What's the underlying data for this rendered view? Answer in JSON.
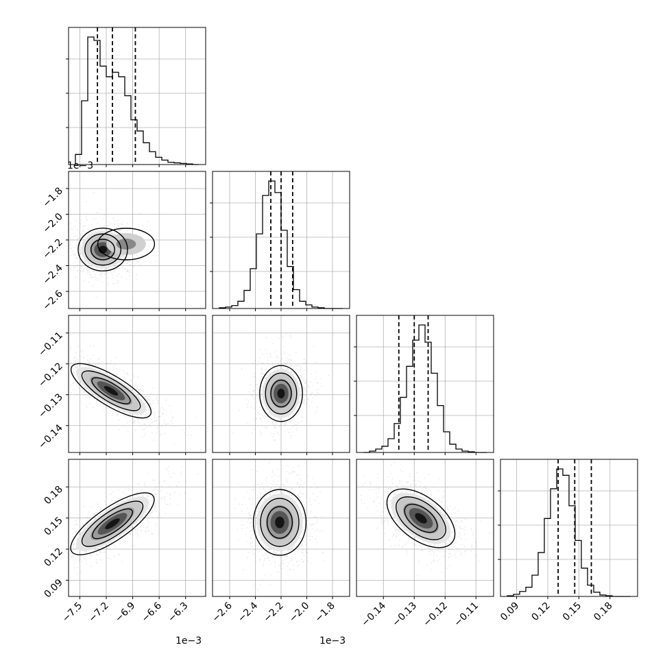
{
  "chart_data": {
    "type": "corner",
    "n_params": 4,
    "grid": true,
    "colors": {
      "line": "#000000",
      "grid": "#b0b0b0",
      "points": "#9a9a9a",
      "density_dark": "#000000",
      "background": "#ffffff"
    },
    "offset_text": {
      "p0": "1e−3",
      "p1": "1e−3"
    },
    "params": [
      {
        "range": [
          -7.55,
          -6.15
        ],
        "ticks": [
          -7.5,
          -7.2,
          -6.9,
          -6.6,
          -6.3
        ],
        "tick_labels": [
          "−7.5",
          "−7.2",
          "−6.9",
          "−6.6",
          "−6.3"
        ],
        "quantiles": [
          -7.3,
          -7.13,
          -6.87
        ]
      },
      {
        "range": [
          -2.68,
          -1.72
        ],
        "ticks": [
          -2.6,
          -2.4,
          -2.2,
          -2.0,
          -1.8
        ],
        "tick_labels": [
          "−2.6",
          "−2.4",
          "−2.2",
          "−2.0",
          "−1.8"
        ],
        "quantiles": [
          -2.28,
          -2.2,
          -2.11
        ]
      },
      {
        "range": [
          -0.1465,
          -0.1065
        ],
        "ticks": [
          -0.14,
          -0.13,
          -0.12,
          -0.11
        ],
        "tick_labels": [
          "−0.14",
          "−0.13",
          "−0.12",
          "−0.11"
        ],
        "quantiles": [
          -0.135,
          -0.13,
          -0.1255
        ]
      },
      {
        "range": [
          0.081,
          0.2
        ],
        "ticks": [
          0.09,
          0.12,
          0.15,
          0.18
        ],
        "tick_labels": [
          "0.09",
          "0.12",
          "0.15",
          "0.18"
        ],
        "quantiles": [
          0.13,
          0.146,
          0.162
        ]
      }
    ],
    "histograms": [
      {
        "counts": [
          18,
          114,
          228,
          222,
          176,
          157,
          165,
          157,
          123,
          80,
          60,
          39,
          23,
          13,
          8,
          4,
          3,
          2,
          1,
          0
        ]
      },
      {
        "counts": [
          1,
          2,
          4,
          10,
          25,
          55,
          103,
          156,
          176,
          160,
          108,
          58,
          26,
          10,
          5,
          2,
          1,
          0,
          0,
          0
        ]
      },
      {
        "counts": [
          0,
          2,
          5,
          9,
          20,
          42,
          80,
          125,
          163,
          185,
          160,
          115,
          68,
          30,
          12,
          5,
          2,
          1,
          0,
          0
        ]
      },
      {
        "counts": [
          1,
          3,
          7,
          13,
          30,
          62,
          110,
          152,
          180,
          171,
          128,
          79,
          40,
          16,
          6,
          2,
          1,
          0,
          0,
          0
        ]
      }
    ]
  }
}
